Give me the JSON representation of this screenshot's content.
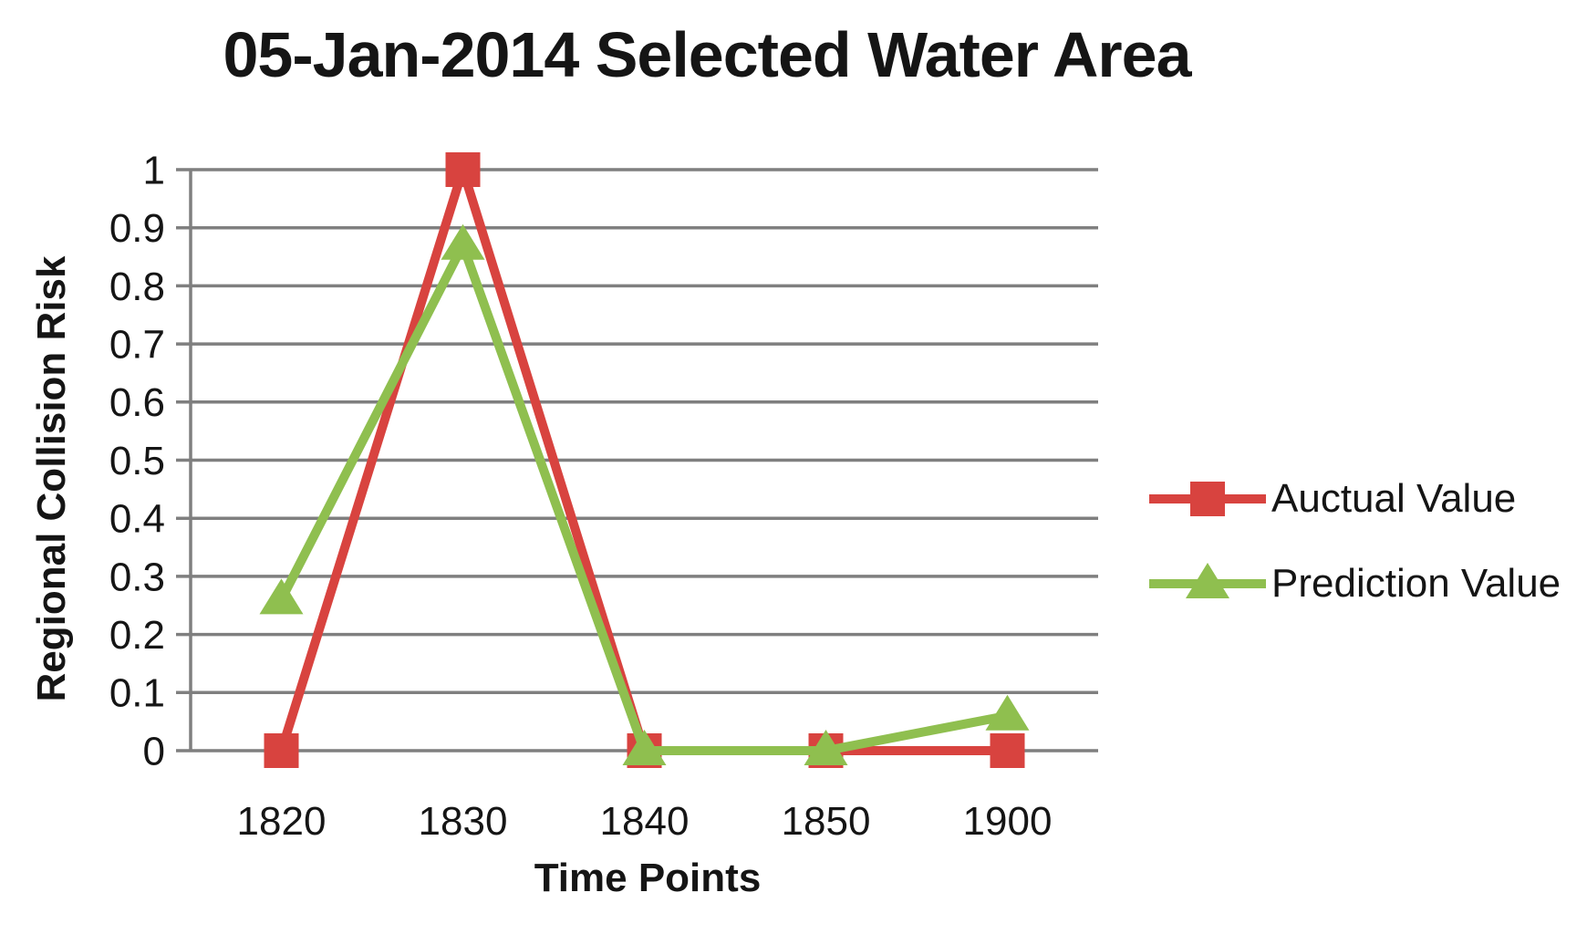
{
  "page": {
    "background": "#ffffff"
  },
  "chart_data": {
    "type": "line",
    "title": "05-Jan-2014 Selected Water Area",
    "xlabel": "Time Points",
    "ylabel": "Regional Collision Risk",
    "categories": [
      "1820",
      "1830",
      "1840",
      "1850",
      "1900"
    ],
    "yticks": [
      "1",
      "0.9",
      "0.8",
      "0.7",
      "0.6",
      "0.5",
      "0.4",
      "0.3",
      "0.2",
      "0.1",
      "0"
    ],
    "ylim": [
      0,
      1
    ],
    "grid": "horizontal",
    "legend_position": "right",
    "colors": {
      "grid": "#7f7f7f",
      "axis": "#7f7f7f",
      "text": "#151515",
      "actual": "#d8433f",
      "prediction": "#8fbf4f"
    },
    "series": [
      {
        "name": "Auctual Value",
        "color": "#d8433f",
        "marker": "square",
        "values": [
          0,
          1,
          0,
          0,
          0
        ]
      },
      {
        "name": "Prediction Value",
        "color": "#8fbf4f",
        "marker": "triangle",
        "values": [
          0.26,
          0.87,
          0,
          0,
          0.06
        ]
      }
    ]
  }
}
